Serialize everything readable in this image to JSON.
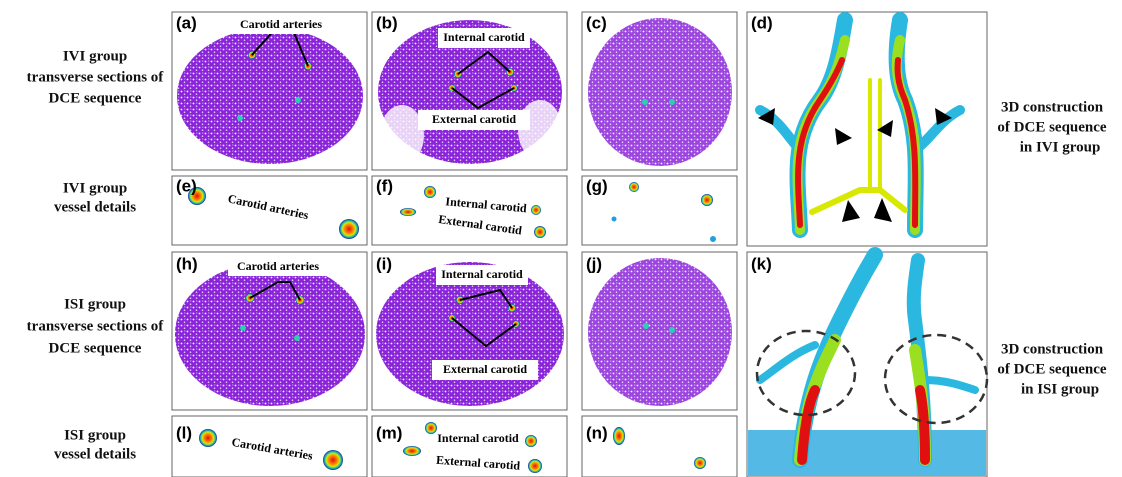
{
  "row_labels": [
    {
      "lines": [
        "IVI group",
        "transverse sections of",
        "DCE sequence"
      ]
    },
    {
      "lines": [
        "IVI group",
        "vessel details"
      ]
    },
    {
      "lines": [
        "ISI group",
        "transverse sections of",
        "DCE sequence"
      ]
    },
    {
      "lines": [
        "ISI group",
        "vessel details"
      ]
    }
  ],
  "side_labels": [
    {
      "lines": [
        "3D construction",
        "of DCE sequence",
        "in IVI group"
      ]
    },
    {
      "lines": [
        "3D construction",
        "of DCE sequence",
        "in ISI group"
      ]
    }
  ],
  "panels": [
    {
      "label": "(a)",
      "annotations": [
        "Carotid arteries"
      ]
    },
    {
      "label": "(b)",
      "annotations": [
        "Internal carotid",
        "External carotid"
      ]
    },
    {
      "label": "(c)"
    },
    {
      "label": "(d)"
    },
    {
      "label": "(e)",
      "annotations": [
        "Carotid arteries"
      ]
    },
    {
      "label": "(f)",
      "annotations": [
        "Internal carotid",
        "External carotid"
      ]
    },
    {
      "label": "(g)"
    },
    {
      "label": "(h)",
      "annotations": [
        "Carotid arteries"
      ]
    },
    {
      "label": "(i)",
      "annotations": [
        "Internal carotid",
        "External carotid"
      ]
    },
    {
      "label": "(j)"
    },
    {
      "label": "(k)"
    },
    {
      "label": "(l)",
      "annotations": [
        "Carotid arteries"
      ]
    },
    {
      "label": "(m)",
      "annotations": [
        "Internal carotid",
        "External carotid"
      ]
    },
    {
      "label": "(n)"
    }
  ]
}
